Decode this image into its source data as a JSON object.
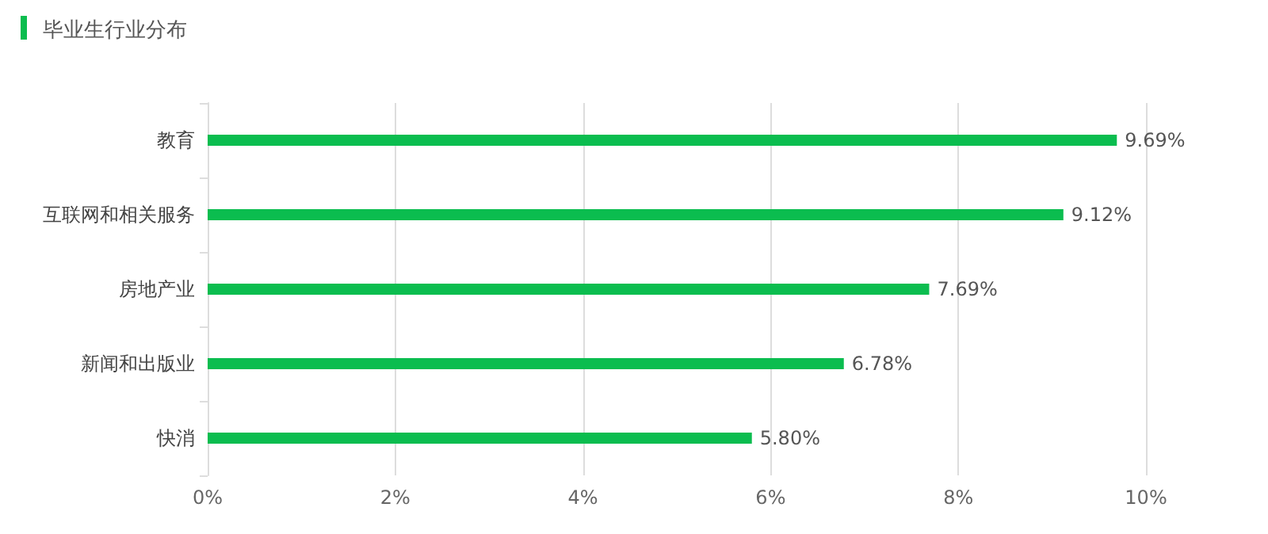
{
  "chart_data": {
    "type": "bar",
    "orientation": "horizontal",
    "title": "毕业生行业分布",
    "categories": [
      "教育",
      "互联网和相关服务",
      "房地产业",
      "新闻和出版业",
      "快消"
    ],
    "values": [
      9.69,
      9.12,
      7.69,
      6.78,
      5.8
    ],
    "value_labels": [
      "9.69%",
      "9.12%",
      "7.69%",
      "6.78%",
      "5.80%"
    ],
    "color": "#0bbd4f",
    "xlim": [
      0,
      10
    ],
    "xticks": [
      {
        "value": 0,
        "label": "0%"
      },
      {
        "value": 2,
        "label": "2%"
      },
      {
        "value": 4,
        "label": "4%"
      },
      {
        "value": 6,
        "label": "6%"
      },
      {
        "value": 8,
        "label": "8%"
      },
      {
        "value": 10,
        "label": "10%"
      }
    ],
    "grid": "x"
  }
}
